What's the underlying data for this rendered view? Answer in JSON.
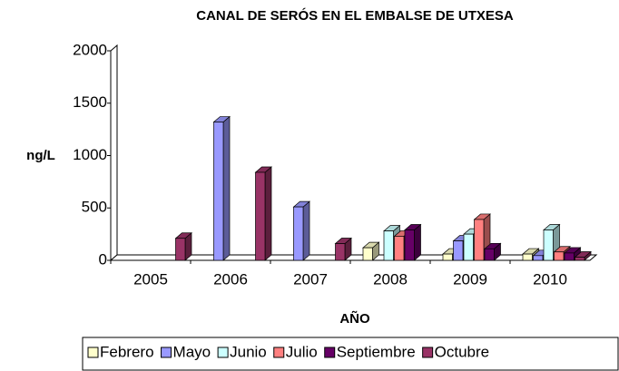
{
  "chart_data": {
    "type": "bar3d",
    "title": "CANAL DE SERÓS EN EL EMBALSE DE UTXESA",
    "x_label": "AÑO",
    "y_label": "ng/L",
    "categories": [
      "2005",
      "2006",
      "2007",
      "2008",
      "2009",
      "2010"
    ],
    "series": [
      {
        "name": "Febrero",
        "color": "#ffffcc",
        "values": [
          null,
          null,
          null,
          120,
          60,
          60
        ]
      },
      {
        "name": "Mayo",
        "color": "#9999ff",
        "values": [
          null,
          1320,
          510,
          null,
          185,
          45
        ]
      },
      {
        "name": "Junio",
        "color": "#ccffff",
        "values": [
          null,
          null,
          null,
          280,
          250,
          290
        ]
      },
      {
        "name": "Julio",
        "color": "#ff8080",
        "values": [
          null,
          null,
          null,
          230,
          390,
          80
        ]
      },
      {
        "name": "Septiembre",
        "color": "#660066",
        "values": [
          null,
          null,
          null,
          290,
          110,
          70
        ]
      },
      {
        "name": "Octubre",
        "color": "#993366",
        "values": [
          210,
          840,
          160,
          null,
          null,
          30
        ]
      }
    ],
    "ylim": [
      0,
      2000
    ],
    "yticks": [
      0,
      500,
      1000,
      1500,
      2000
    ],
    "grid": false
  }
}
